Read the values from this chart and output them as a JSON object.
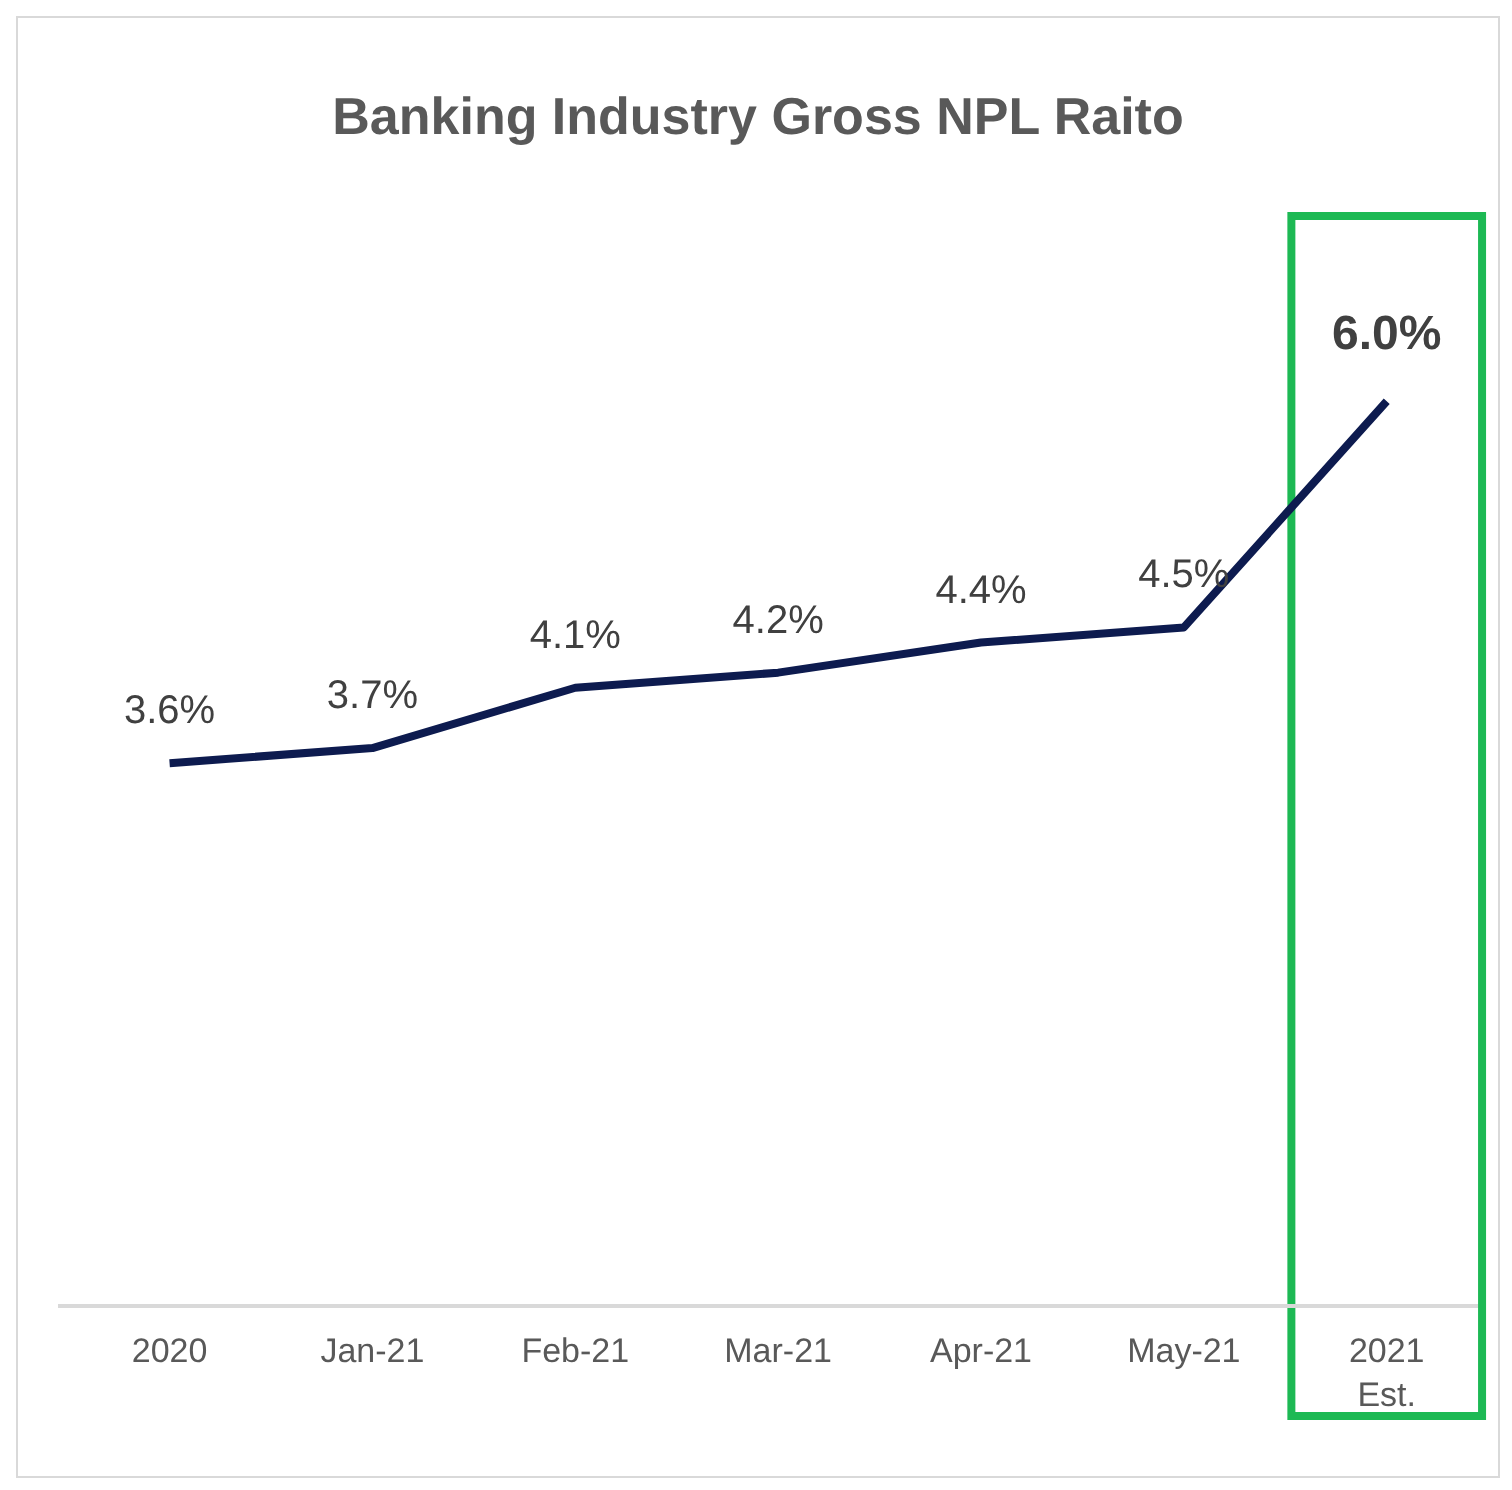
{
  "chart_data": {
    "type": "line",
    "title": "Banking Industry Gross NPL Raito",
    "categories": [
      "2020",
      "Jan-21",
      "Feb-21",
      "Mar-21",
      "Apr-21",
      "May-21",
      "2021 Est."
    ],
    "series": [
      {
        "color": "#0d1b4f",
        "values": [
          3.6,
          3.7,
          4.1,
          4.2,
          4.4,
          4.5,
          6.0
        ],
        "value_labels": [
          "3.6%",
          "3.7%",
          "4.1%",
          "4.2%",
          "4.4%",
          "4.5%",
          "6.0%"
        ]
      }
    ],
    "tick_labels": "x",
    "marker": "none",
    "line_style": "solid"
  }
}
